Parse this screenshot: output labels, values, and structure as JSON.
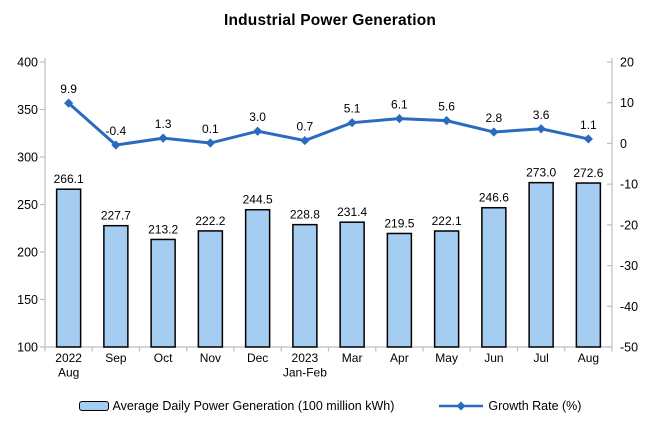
{
  "title": "Industrial Power Generation",
  "colors": {
    "bar_fill": "#A5CDF2",
    "bar_stroke": "#000000",
    "line": "#2A6BBF",
    "axis": "#BFBFBF",
    "text": "#000000",
    "background": "#FFFFFF"
  },
  "chart_data": {
    "type": "bar+line",
    "title": "Industrial Power Generation",
    "categories": [
      "2022 Aug",
      "Sep",
      "Oct",
      "Nov",
      "Dec",
      "2023 Jan-Feb",
      "Mar",
      "Apr",
      "May",
      "Jun",
      "Jul",
      "Aug"
    ],
    "x_labels": [
      [
        "2022",
        "Aug"
      ],
      [
        "Sep"
      ],
      [
        "Oct"
      ],
      [
        "Nov"
      ],
      [
        "Dec"
      ],
      [
        "2023",
        "Jan-Feb"
      ],
      [
        "Mar"
      ],
      [
        "Apr"
      ],
      [
        "May"
      ],
      [
        "Jun"
      ],
      [
        "Jul"
      ],
      [
        "Aug"
      ]
    ],
    "series": [
      {
        "name": "Average Daily Power Generation (100 million kWh)",
        "type": "bar",
        "axis": "left",
        "values": [
          266.1,
          227.7,
          213.2,
          222.2,
          244.5,
          228.8,
          231.4,
          219.5,
          222.1,
          246.6,
          273.0,
          272.6
        ]
      },
      {
        "name": "Growth Rate (%)",
        "type": "line",
        "axis": "right",
        "values": [
          9.9,
          -0.4,
          1.3,
          0.1,
          3.0,
          0.7,
          5.1,
          6.1,
          5.6,
          2.8,
          3.6,
          1.1
        ]
      }
    ],
    "left_axis": {
      "min": 100,
      "max": 400,
      "step": 50,
      "ticks": [
        400,
        350,
        300,
        250,
        200,
        150,
        100
      ]
    },
    "right_axis": {
      "min": -50,
      "max": 20,
      "step": 10,
      "ticks": [
        20,
        10,
        0,
        -10,
        -20,
        -30,
        -40,
        -50
      ]
    },
    "grid": false,
    "legend_position": "bottom",
    "data_labels": true,
    "label_decimals": 1
  }
}
